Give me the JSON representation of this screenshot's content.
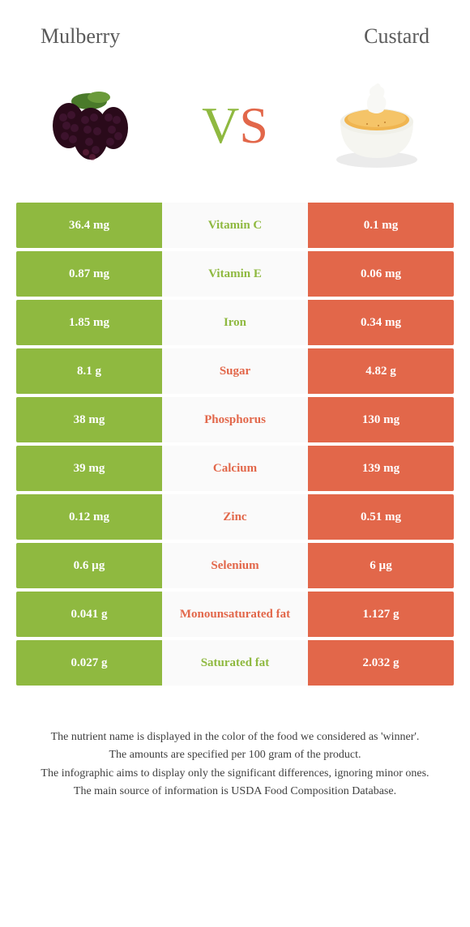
{
  "header": {
    "left_title": "Mulberry",
    "right_title": "Custard"
  },
  "vs": {
    "v": "V",
    "s": "S"
  },
  "colors": {
    "left": "#8fb940",
    "right": "#e2674a",
    "mid_bg": "#fafafa"
  },
  "rows": [
    {
      "left": "36.4 mg",
      "mid": "Vitamin C",
      "right": "0.1 mg",
      "winner": "left"
    },
    {
      "left": "0.87 mg",
      "mid": "Vitamin E",
      "right": "0.06 mg",
      "winner": "left"
    },
    {
      "left": "1.85 mg",
      "mid": "Iron",
      "right": "0.34 mg",
      "winner": "left"
    },
    {
      "left": "8.1 g",
      "mid": "Sugar",
      "right": "4.82 g",
      "winner": "right"
    },
    {
      "left": "38 mg",
      "mid": "Phosphorus",
      "right": "130 mg",
      "winner": "right"
    },
    {
      "left": "39 mg",
      "mid": "Calcium",
      "right": "139 mg",
      "winner": "right"
    },
    {
      "left": "0.12 mg",
      "mid": "Zinc",
      "right": "0.51 mg",
      "winner": "right"
    },
    {
      "left": "0.6 µg",
      "mid": "Selenium",
      "right": "6 µg",
      "winner": "right"
    },
    {
      "left": "0.041 g",
      "mid": "Monounsaturated fat",
      "right": "1.127 g",
      "winner": "right"
    },
    {
      "left": "0.027 g",
      "mid": "Saturated fat",
      "right": "2.032 g",
      "winner": "left"
    }
  ],
  "footer": {
    "line1": "The nutrient name is displayed in the color of the food we considered as 'winner'.",
    "line2": "The amounts are specified per 100 gram of the product.",
    "line3": "The infographic aims to display only the significant differences, ignoring minor ones.",
    "line4": "The main source of information is USDA Food Composition Database."
  }
}
